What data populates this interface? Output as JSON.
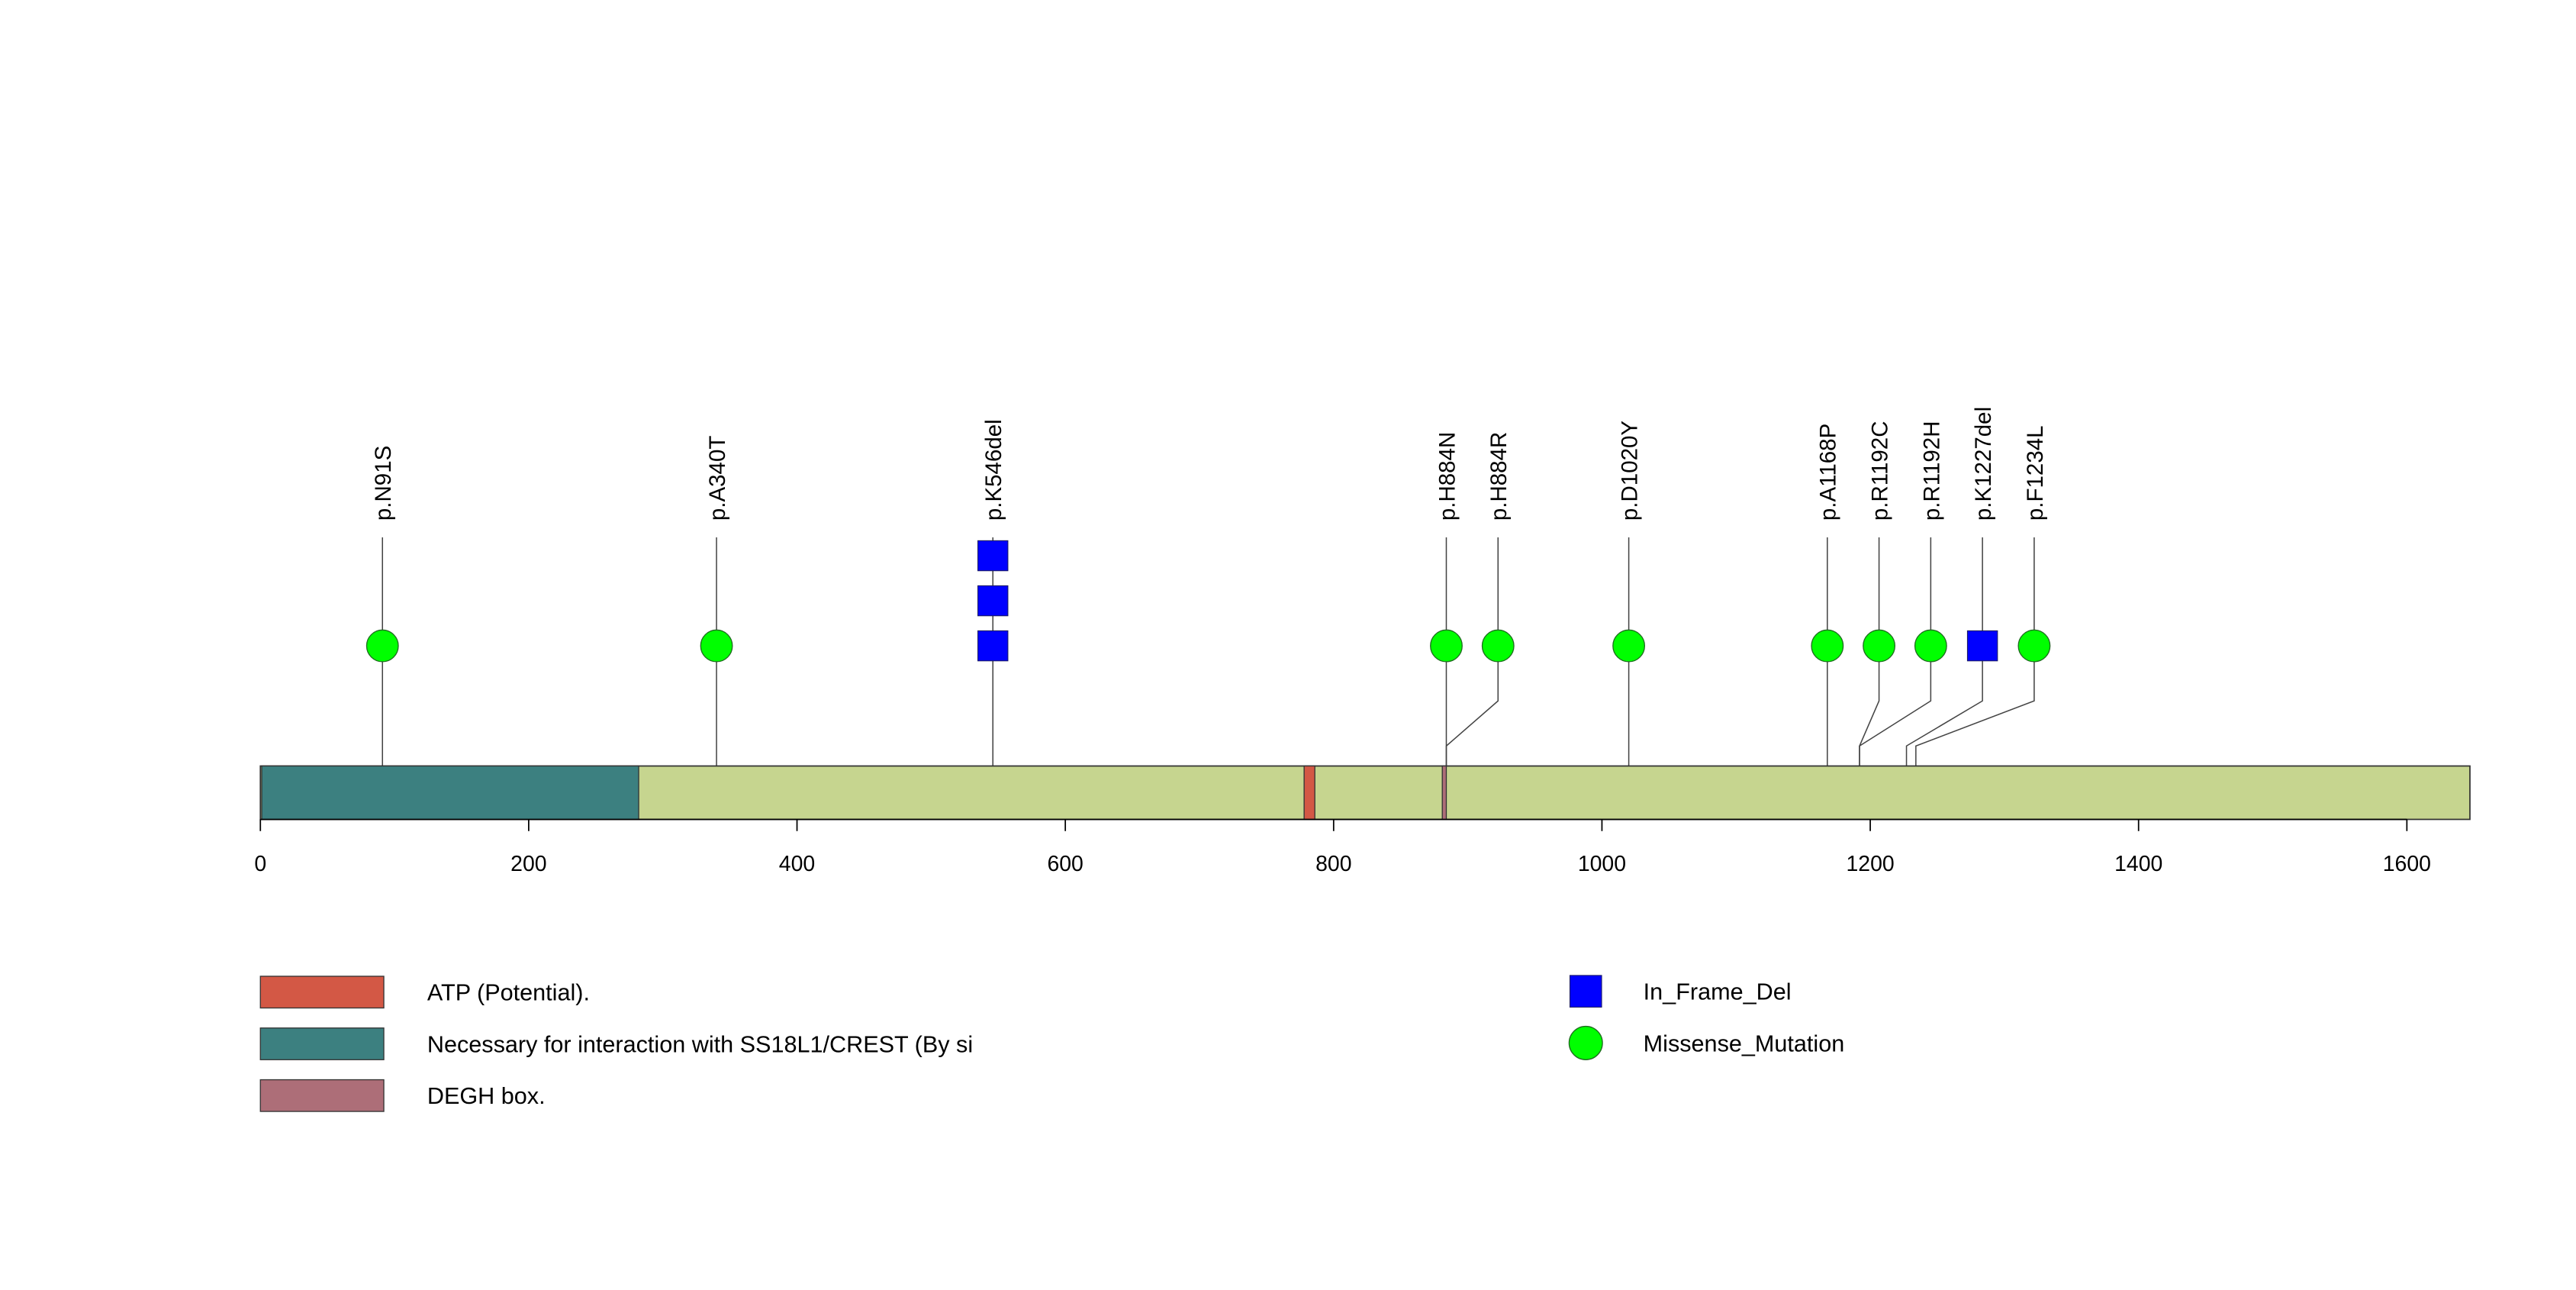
{
  "chart_data": {
    "type": "lollipop",
    "x_axis": {
      "min": 0,
      "max": 1647,
      "ticks": [
        0,
        200,
        400,
        600,
        800,
        1000,
        1200,
        1400,
        1600
      ]
    },
    "protein_length": 1647,
    "domains": [
      {
        "name": "Necessary for interaction with SS18L1/CREST (By si",
        "start": 1,
        "end": 282,
        "color": "#3c8080"
      },
      {
        "name": "ATP (Potential).",
        "start": 778,
        "end": 786,
        "color": "#d35845"
      },
      {
        "name": "DEGH box.",
        "start": 881,
        "end": 884,
        "color": "#ad6e78"
      }
    ],
    "backbone_color": "#c6d58f",
    "mutations": [
      {
        "label": "p.N91S",
        "position": 91,
        "type": "Missense_Mutation",
        "count": 1
      },
      {
        "label": "p.A340T",
        "position": 340,
        "type": "Missense_Mutation",
        "count": 1
      },
      {
        "label": "p.K546del",
        "position": 546,
        "type": "In_Frame_Del",
        "count": 3
      },
      {
        "label": "p.H884N",
        "position": 884,
        "type": "Missense_Mutation",
        "count": 1
      },
      {
        "label": "p.H884R",
        "position": 884,
        "type": "Missense_Mutation",
        "count": 1
      },
      {
        "label": "p.D1020Y",
        "position": 1020,
        "type": "Missense_Mutation",
        "count": 1
      },
      {
        "label": "p.A1168P",
        "position": 1168,
        "type": "Missense_Mutation",
        "count": 1
      },
      {
        "label": "p.R1192C",
        "position": 1192,
        "type": "Missense_Mutation",
        "count": 1
      },
      {
        "label": "p.R1192H",
        "position": 1192,
        "type": "Missense_Mutation",
        "count": 1
      },
      {
        "label": "p.K1227del",
        "position": 1227,
        "type": "In_Frame_Del",
        "count": 1
      },
      {
        "label": "p.F1234L",
        "position": 1234,
        "type": "Missense_Mutation",
        "count": 1
      }
    ],
    "mutation_legend": [
      {
        "name": "In_Frame_Del",
        "shape": "square",
        "color": "#0000ff"
      },
      {
        "name": "Missense_Mutation",
        "shape": "circle",
        "color": "#00ff00"
      }
    ],
    "domain_legend": [
      {
        "name": "ATP (Potential).",
        "color": "#d35845"
      },
      {
        "name": "Necessary for interaction with SS18L1/CREST (By si",
        "color": "#3c8080"
      },
      {
        "name": "DEGH box.",
        "color": "#ad6e78"
      }
    ]
  }
}
